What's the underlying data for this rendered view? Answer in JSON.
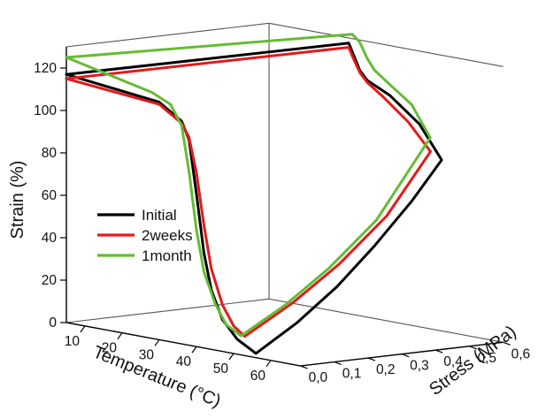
{
  "chart_data": {
    "type": "line-3d",
    "title": "",
    "zlabel": "Strain (%)",
    "xlabel": "Temperature (°C)",
    "ylabel": "Stress (MPa)",
    "zlim": [
      0,
      130
    ],
    "xlim": [
      5,
      68
    ],
    "ylim": [
      0,
      0.6
    ],
    "z_ticks": [
      "0",
      "20",
      "40",
      "60",
      "80",
      "100",
      "120"
    ],
    "x_ticks": [
      "10",
      "20",
      "30",
      "40",
      "50",
      "60"
    ],
    "y_ticks": [
      "0,0",
      "0,1",
      "0,2",
      "0,3",
      "0,4",
      "0,5",
      "0,6"
    ],
    "legend_position": "center-left",
    "series": [
      {
        "name": "Initial",
        "color": "#000000",
        "points": [
          {
            "t": 5,
            "s": 0.0,
            "e": 117
          },
          {
            "t": 30,
            "s": 0.0,
            "e": 112
          },
          {
            "t": 36,
            "s": 0.0,
            "e": 105
          },
          {
            "t": 38,
            "s": 0.0,
            "e": 97
          },
          {
            "t": 40,
            "s": 0.0,
            "e": 72
          },
          {
            "t": 42,
            "s": 0.0,
            "e": 45
          },
          {
            "t": 44,
            "s": 0.0,
            "e": 28
          },
          {
            "t": 47,
            "s": 0.0,
            "e": 15
          },
          {
            "t": 51,
            "s": 0.0,
            "e": 7
          },
          {
            "t": 55,
            "s": 0.0,
            "e": 3
          },
          {
            "t": 56,
            "s": 0.0,
            "e": 2
          },
          {
            "t": 56,
            "s": 0.12,
            "e": 14
          },
          {
            "t": 56,
            "s": 0.24,
            "e": 29
          },
          {
            "t": 56,
            "s": 0.35,
            "e": 46
          },
          {
            "t": 56,
            "s": 0.46,
            "e": 65
          },
          {
            "t": 56,
            "s": 0.55,
            "e": 83
          },
          {
            "t": 50,
            "s": 0.55,
            "e": 98
          },
          {
            "t": 42,
            "s": 0.55,
            "e": 109
          },
          {
            "t": 36,
            "s": 0.55,
            "e": 114
          },
          {
            "t": 34,
            "s": 0.55,
            "e": 118
          },
          {
            "t": 32,
            "s": 0.55,
            "e": 126
          },
          {
            "t": 31,
            "s": 0.55,
            "e": 130
          },
          {
            "t": 5,
            "s": 0.0,
            "e": 117
          }
        ]
      },
      {
        "name": "2weeks",
        "color": "#e31a1c",
        "points": [
          {
            "t": 5,
            "s": 0.0,
            "e": 115
          },
          {
            "t": 30,
            "s": 0.0,
            "e": 111
          },
          {
            "t": 36,
            "s": 0.0,
            "e": 104
          },
          {
            "t": 38,
            "s": 0.0,
            "e": 98
          },
          {
            "t": 40,
            "s": 0.0,
            "e": 82
          },
          {
            "t": 42,
            "s": 0.0,
            "e": 58
          },
          {
            "t": 44,
            "s": 0.0,
            "e": 38
          },
          {
            "t": 47,
            "s": 0.0,
            "e": 22
          },
          {
            "t": 50,
            "s": 0.0,
            "e": 13
          },
          {
            "t": 53,
            "s": 0.0,
            "e": 9
          },
          {
            "t": 53,
            "s": 0.14,
            "e": 22
          },
          {
            "t": 53,
            "s": 0.28,
            "e": 38
          },
          {
            "t": 53,
            "s": 0.42,
            "e": 58
          },
          {
            "t": 53,
            "s": 0.55,
            "e": 86
          },
          {
            "t": 47,
            "s": 0.55,
            "e": 98
          },
          {
            "t": 40,
            "s": 0.55,
            "e": 108
          },
          {
            "t": 36,
            "s": 0.55,
            "e": 113
          },
          {
            "t": 34,
            "s": 0.55,
            "e": 117
          },
          {
            "t": 32,
            "s": 0.55,
            "e": 124
          },
          {
            "t": 31,
            "s": 0.55,
            "e": 128
          },
          {
            "t": 5,
            "s": 0.0,
            "e": 115
          }
        ]
      },
      {
        "name": "1month",
        "color": "#66bb33",
        "points": [
          {
            "t": 5,
            "s": 0.0,
            "e": 125
          },
          {
            "t": 28,
            "s": 0.0,
            "e": 116
          },
          {
            "t": 33,
            "s": 0.0,
            "e": 112
          },
          {
            "t": 36,
            "s": 0.0,
            "e": 103
          },
          {
            "t": 38,
            "s": 0.0,
            "e": 82
          },
          {
            "t": 40,
            "s": 0.0,
            "e": 55
          },
          {
            "t": 42,
            "s": 0.0,
            "e": 36
          },
          {
            "t": 45,
            "s": 0.0,
            "e": 22
          },
          {
            "t": 48,
            "s": 0.0,
            "e": 13
          },
          {
            "t": 52,
            "s": 0.0,
            "e": 9
          },
          {
            "t": 52,
            "s": 0.13,
            "e": 21
          },
          {
            "t": 52,
            "s": 0.26,
            "e": 36
          },
          {
            "t": 52,
            "s": 0.4,
            "e": 56
          },
          {
            "t": 52,
            "s": 0.56,
            "e": 92
          },
          {
            "t": 47,
            "s": 0.56,
            "e": 106
          },
          {
            "t": 40,
            "s": 0.56,
            "e": 115
          },
          {
            "t": 37,
            "s": 0.56,
            "e": 119
          },
          {
            "t": 35,
            "s": 0.56,
            "e": 124
          },
          {
            "t": 33,
            "s": 0.56,
            "e": 131
          },
          {
            "t": 31,
            "s": 0.56,
            "e": 134
          },
          {
            "t": 5,
            "s": 0.0,
            "e": 125
          }
        ]
      }
    ]
  }
}
